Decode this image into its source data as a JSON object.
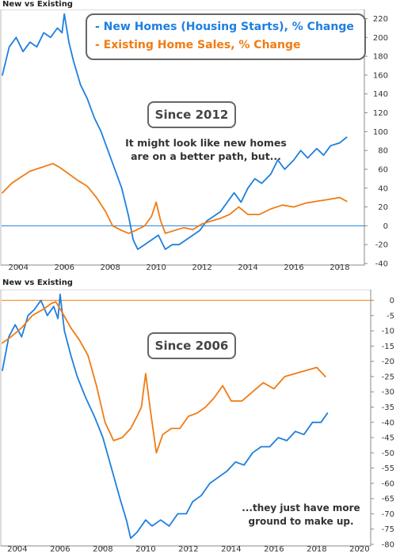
{
  "chart_data": [
    {
      "type": "line",
      "panel_title": "New vs Existing",
      "legend": {
        "placement": "top-center"
      },
      "annotation_badge": "Since 2012",
      "annotation_text": "It might look like new homes are on a better path, but...",
      "x_tick_labels": [
        "2004",
        "2006",
        "2008",
        "2010",
        "2012",
        "2014",
        "2016",
        "2018"
      ],
      "y_tick_labels": [
        "220",
        "200",
        "180",
        "160",
        "140",
        "120",
        "100",
        "80",
        "60",
        "40",
        "20",
        "0",
        "-20",
        "-40"
      ],
      "xlim": [
        2003.3,
        2018.9
      ],
      "ylim": [
        -40,
        228
      ],
      "reference_line": 0,
      "series": [
        {
          "name": "- New Homes (Housing Starts), % Change",
          "color": "#1f7fe0",
          "points": [
            [
              2003.3,
              160
            ],
            [
              2003.6,
              190
            ],
            [
              2003.9,
              200
            ],
            [
              2004.2,
              185
            ],
            [
              2004.5,
              195
            ],
            [
              2004.8,
              190
            ],
            [
              2005.1,
              205
            ],
            [
              2005.4,
              200
            ],
            [
              2005.7,
              210
            ],
            [
              2005.9,
              205
            ],
            [
              2006.0,
              225
            ],
            [
              2006.2,
              195
            ],
            [
              2006.4,
              175
            ],
            [
              2006.7,
              150
            ],
            [
              2007.0,
              135
            ],
            [
              2007.3,
              115
            ],
            [
              2007.6,
              100
            ],
            [
              2007.9,
              80
            ],
            [
              2008.2,
              60
            ],
            [
              2008.5,
              40
            ],
            [
              2008.8,
              10
            ],
            [
              2009.0,
              -15
            ],
            [
              2009.2,
              -25
            ],
            [
              2009.5,
              -20
            ],
            [
              2009.8,
              -15
            ],
            [
              2010.1,
              -10
            ],
            [
              2010.4,
              -25
            ],
            [
              2010.7,
              -20
            ],
            [
              2011.0,
              -20
            ],
            [
              2011.3,
              -15
            ],
            [
              2011.6,
              -10
            ],
            [
              2011.9,
              -5
            ],
            [
              2012.2,
              5
            ],
            [
              2012.5,
              10
            ],
            [
              2012.8,
              15
            ],
            [
              2013.1,
              25
            ],
            [
              2013.4,
              35
            ],
            [
              2013.7,
              25
            ],
            [
              2014.0,
              40
            ],
            [
              2014.3,
              50
            ],
            [
              2014.6,
              45
            ],
            [
              2015.0,
              55
            ],
            [
              2015.3,
              70
            ],
            [
              2015.6,
              60
            ],
            [
              2016.0,
              70
            ],
            [
              2016.3,
              80
            ],
            [
              2016.6,
              72
            ],
            [
              2017.0,
              82
            ],
            [
              2017.3,
              75
            ],
            [
              2017.6,
              85
            ],
            [
              2018.0,
              88
            ],
            [
              2018.3,
              94
            ]
          ]
        },
        {
          "name": "- Existing Home Sales, % Change",
          "color": "#f07c14",
          "points": [
            [
              2003.3,
              35
            ],
            [
              2003.7,
              45
            ],
            [
              2004.0,
              50
            ],
            [
              2004.5,
              58
            ],
            [
              2005.0,
              62
            ],
            [
              2005.5,
              66
            ],
            [
              2005.8,
              62
            ],
            [
              2006.2,
              55
            ],
            [
              2006.6,
              48
            ],
            [
              2007.0,
              42
            ],
            [
              2007.4,
              30
            ],
            [
              2007.8,
              15
            ],
            [
              2008.1,
              0
            ],
            [
              2008.5,
              -5
            ],
            [
              2008.8,
              -8
            ],
            [
              2009.1,
              -5
            ],
            [
              2009.5,
              0
            ],
            [
              2009.8,
              10
            ],
            [
              2010.0,
              25
            ],
            [
              2010.2,
              5
            ],
            [
              2010.4,
              -8
            ],
            [
              2010.8,
              -5
            ],
            [
              2011.2,
              -2
            ],
            [
              2011.6,
              -4
            ],
            [
              2012.0,
              2
            ],
            [
              2012.4,
              5
            ],
            [
              2012.8,
              8
            ],
            [
              2013.2,
              12
            ],
            [
              2013.6,
              20
            ],
            [
              2014.0,
              12
            ],
            [
              2014.5,
              12
            ],
            [
              2015.0,
              18
            ],
            [
              2015.5,
              22
            ],
            [
              2016.0,
              20
            ],
            [
              2016.5,
              24
            ],
            [
              2017.0,
              26
            ],
            [
              2017.5,
              28
            ],
            [
              2018.0,
              30
            ],
            [
              2018.3,
              26
            ]
          ]
        }
      ]
    },
    {
      "type": "line",
      "panel_title": "New vs Existing",
      "annotation_badge": "Since 2006",
      "annotation_text": "...they just have more ground to make up.",
      "x_tick_labels": [
        "2004",
        "2006",
        "2008",
        "2010",
        "2012",
        "2014",
        "2016",
        "2018",
        "2020"
      ],
      "y_tick_labels": [
        "0",
        "-5",
        "-10",
        "-15",
        "-20",
        "-25",
        "-30",
        "-35",
        "-40",
        "-45",
        "-50",
        "-55",
        "-60",
        "-65",
        "-70",
        "-75",
        "-80"
      ],
      "xlim": [
        2003.3,
        2020.3
      ],
      "ylim": [
        -80,
        3
      ],
      "reference_line": 0,
      "series": [
        {
          "name": "New Homes (Housing Starts)",
          "color": "#1f7fe0",
          "points": [
            [
              2003.3,
              -23
            ],
            [
              2003.6,
              -12
            ],
            [
              2003.9,
              -8
            ],
            [
              2004.2,
              -12
            ],
            [
              2004.5,
              -5
            ],
            [
              2004.8,
              -3
            ],
            [
              2005.1,
              0
            ],
            [
              2005.4,
              -5
            ],
            [
              2005.7,
              -2
            ],
            [
              2005.9,
              -6
            ],
            [
              2006.0,
              2
            ],
            [
              2006.2,
              -10
            ],
            [
              2006.5,
              -18
            ],
            [
              2006.8,
              -25
            ],
            [
              2007.2,
              -32
            ],
            [
              2007.6,
              -38
            ],
            [
              2008.0,
              -45
            ],
            [
              2008.4,
              -55
            ],
            [
              2008.8,
              -65
            ],
            [
              2009.1,
              -72
            ],
            [
              2009.3,
              -78
            ],
            [
              2009.6,
              -76
            ],
            [
              2010.0,
              -72
            ],
            [
              2010.3,
              -74
            ],
            [
              2010.7,
              -72
            ],
            [
              2011.1,
              -74
            ],
            [
              2011.5,
              -70
            ],
            [
              2011.9,
              -70
            ],
            [
              2012.2,
              -66
            ],
            [
              2012.6,
              -64
            ],
            [
              2013.0,
              -60
            ],
            [
              2013.4,
              -58
            ],
            [
              2013.8,
              -56
            ],
            [
              2014.2,
              -53
            ],
            [
              2014.6,
              -54
            ],
            [
              2015.0,
              -50
            ],
            [
              2015.4,
              -48
            ],
            [
              2015.8,
              -48
            ],
            [
              2016.2,
              -45
            ],
            [
              2016.6,
              -46
            ],
            [
              2017.0,
              -43
            ],
            [
              2017.4,
              -44
            ],
            [
              2017.8,
              -40
            ],
            [
              2018.2,
              -40
            ],
            [
              2018.5,
              -37
            ]
          ]
        },
        {
          "name": "Existing Home Sales",
          "color": "#f07c14",
          "points": [
            [
              2003.3,
              -14
            ],
            [
              2003.7,
              -12
            ],
            [
              2004.2,
              -9
            ],
            [
              2004.7,
              -5
            ],
            [
              2005.2,
              -3
            ],
            [
              2005.6,
              -1
            ],
            [
              2005.8,
              -0.5
            ],
            [
              2006.1,
              -4
            ],
            [
              2006.5,
              -9
            ],
            [
              2006.9,
              -13
            ],
            [
              2007.3,
              -18
            ],
            [
              2007.7,
              -28
            ],
            [
              2008.1,
              -40
            ],
            [
              2008.5,
              -46
            ],
            [
              2008.9,
              -45
            ],
            [
              2009.3,
              -42
            ],
            [
              2009.6,
              -38
            ],
            [
              2009.8,
              -35
            ],
            [
              2010.0,
              -24
            ],
            [
              2010.2,
              -35
            ],
            [
              2010.5,
              -50
            ],
            [
              2010.8,
              -44
            ],
            [
              2011.2,
              -42
            ],
            [
              2011.6,
              -42
            ],
            [
              2012.0,
              -38
            ],
            [
              2012.4,
              -37
            ],
            [
              2012.8,
              -35
            ],
            [
              2013.2,
              -32
            ],
            [
              2013.6,
              -28
            ],
            [
              2014.0,
              -33
            ],
            [
              2014.5,
              -33
            ],
            [
              2015.0,
              -30
            ],
            [
              2015.5,
              -27
            ],
            [
              2016.0,
              -29
            ],
            [
              2016.5,
              -25
            ],
            [
              2017.0,
              -24
            ],
            [
              2017.5,
              -23
            ],
            [
              2018.0,
              -22
            ],
            [
              2018.4,
              -25
            ]
          ]
        }
      ]
    }
  ],
  "charts": [
    {
      "title": "New vs Existing",
      "badge": "Since 2012",
      "annotation_line1": "It might look like new homes",
      "annotation_line2": "are on a better path, but...",
      "legend_new": "- New Homes (Housing Starts), % Change",
      "legend_existing": "- Existing Home Sales, % Change"
    },
    {
      "title": "New vs Existing",
      "badge": "Since 2006",
      "annotation_line1": "...they just have more",
      "annotation_line2": "ground to make up."
    }
  ],
  "colors": {
    "new_homes": "#1f7fe0",
    "existing_sales": "#f07c14",
    "zero_line_top": "#1f7fe0",
    "zero_line_bottom": "#f07c14"
  }
}
